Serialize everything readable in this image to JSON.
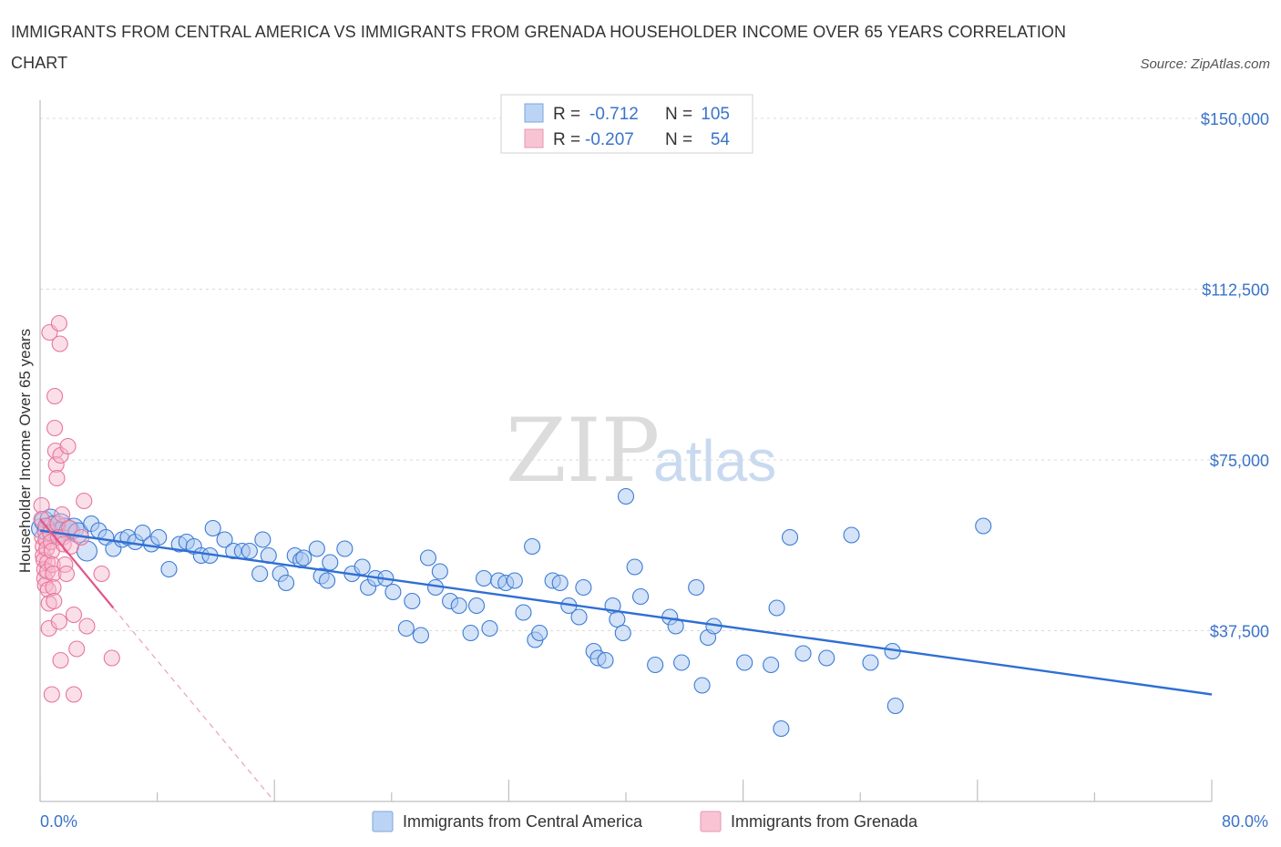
{
  "header": {
    "title": "IMMIGRANTS FROM CENTRAL AMERICA VS IMMIGRANTS FROM GRENADA HOUSEHOLDER INCOME OVER 65 YEARS CORRELATION CHART",
    "source": "Source: ZipAtlas.com"
  },
  "watermark": {
    "zip": "ZIP",
    "atlas": "atlas"
  },
  "legend": {
    "r_label": "R =",
    "n_label": "N =",
    "items": [
      {
        "r": "-0.712",
        "n": "105",
        "color": "#3a7ad6"
      },
      {
        "r": "-0.207",
        "n": "54",
        "color": "#e8749c"
      }
    ]
  },
  "chart_data": {
    "type": "scatter",
    "title": "IMMIGRANTS FROM CENTRAL AMERICA VS IMMIGRANTS FROM GRENADA HOUSEHOLDER INCOME OVER 65 YEARS CORRELATION CHART",
    "xlabel": "",
    "ylabel": "Householder Income Over 65 years",
    "xlim": [
      0,
      80
    ],
    "ylim": [
      0,
      150000
    ],
    "x_tick_labels": [
      "0.0%",
      "80.0%"
    ],
    "y_ticks": [
      37500,
      75000,
      112500,
      150000
    ],
    "y_tick_labels": [
      "$37,500",
      "$75,000",
      "$112,500",
      "$150,000"
    ],
    "grid": true,
    "legend_position": "top-center",
    "series": [
      {
        "name": "Immigrants from Central America",
        "color": "#3a7ad6",
        "points": [
          [
            0.1,
            60000
          ],
          [
            0.3,
            61500
          ],
          [
            0.5,
            59500
          ],
          [
            0.7,
            62000
          ],
          [
            0.9,
            60500
          ],
          [
            1.2,
            59000
          ],
          [
            1.4,
            61000
          ],
          [
            1.7,
            60000
          ],
          [
            2.0,
            59500
          ],
          [
            2.3,
            60000
          ],
          [
            2.6,
            59000
          ],
          [
            3.2,
            55000
          ],
          [
            3.5,
            61000
          ],
          [
            4.0,
            59500
          ],
          [
            4.5,
            58000
          ],
          [
            5.0,
            55500
          ],
          [
            5.6,
            57500
          ],
          [
            6.0,
            58000
          ],
          [
            6.5,
            57000
          ],
          [
            7.0,
            59000
          ],
          [
            7.6,
            56500
          ],
          [
            8.1,
            58000
          ],
          [
            8.8,
            51000
          ],
          [
            9.5,
            56500
          ],
          [
            10.0,
            57000
          ],
          [
            10.5,
            56000
          ],
          [
            11.0,
            54000
          ],
          [
            11.6,
            54000
          ],
          [
            11.8,
            60000
          ],
          [
            12.6,
            57500
          ],
          [
            13.2,
            55000
          ],
          [
            13.8,
            55000
          ],
          [
            14.3,
            55000
          ],
          [
            15.2,
            57500
          ],
          [
            15.6,
            54000
          ],
          [
            15.0,
            50000
          ],
          [
            16.4,
            50000
          ],
          [
            16.8,
            48000
          ],
          [
            17.4,
            54000
          ],
          [
            17.8,
            53000
          ],
          [
            18.0,
            53500
          ],
          [
            18.9,
            55500
          ],
          [
            19.2,
            49500
          ],
          [
            19.8,
            52500
          ],
          [
            19.6,
            48500
          ],
          [
            20.8,
            55500
          ],
          [
            21.3,
            50000
          ],
          [
            22.0,
            51500
          ],
          [
            22.4,
            47000
          ],
          [
            22.9,
            49000
          ],
          [
            23.6,
            49000
          ],
          [
            24.1,
            46000
          ],
          [
            25.0,
            38000
          ],
          [
            25.4,
            44000
          ],
          [
            26.0,
            36500
          ],
          [
            26.5,
            53500
          ],
          [
            27.0,
            47000
          ],
          [
            27.3,
            50500
          ],
          [
            28.0,
            44000
          ],
          [
            28.6,
            43000
          ],
          [
            29.4,
            37000
          ],
          [
            29.8,
            43000
          ],
          [
            30.3,
            49000
          ],
          [
            30.7,
            38000
          ],
          [
            31.3,
            48500
          ],
          [
            31.8,
            48000
          ],
          [
            32.4,
            48500
          ],
          [
            33.0,
            41500
          ],
          [
            33.6,
            56000
          ],
          [
            33.8,
            35500
          ],
          [
            34.1,
            37000
          ],
          [
            35.0,
            48500
          ],
          [
            35.5,
            48000
          ],
          [
            36.1,
            43000
          ],
          [
            36.8,
            40500
          ],
          [
            37.1,
            47000
          ],
          [
            37.8,
            33000
          ],
          [
            38.1,
            31500
          ],
          [
            38.6,
            31000
          ],
          [
            39.1,
            43000
          ],
          [
            39.4,
            40000
          ],
          [
            39.8,
            37000
          ],
          [
            40.0,
            67000
          ],
          [
            40.6,
            51500
          ],
          [
            41.0,
            45000
          ],
          [
            42.0,
            30000
          ],
          [
            43.0,
            40500
          ],
          [
            43.4,
            38500
          ],
          [
            43.8,
            30500
          ],
          [
            44.8,
            47000
          ],
          [
            45.2,
            25500
          ],
          [
            45.6,
            36000
          ],
          [
            46.0,
            38500
          ],
          [
            48.1,
            30500
          ],
          [
            49.9,
            30000
          ],
          [
            50.3,
            42500
          ],
          [
            50.6,
            16000
          ],
          [
            51.2,
            58000
          ],
          [
            52.1,
            32500
          ],
          [
            53.7,
            31500
          ],
          [
            55.4,
            58500
          ],
          [
            56.7,
            30500
          ],
          [
            58.2,
            33000
          ],
          [
            58.4,
            21000
          ],
          [
            64.4,
            60500
          ]
        ],
        "trend": {
          "x": [
            0,
            80
          ],
          "y": [
            59500,
            23500
          ]
        }
      },
      {
        "name": "Immigrants from Grenada",
        "color": "#e8749c",
        "points": [
          [
            0.1,
            65000
          ],
          [
            0.1,
            62000
          ],
          [
            0.15,
            58000
          ],
          [
            0.2,
            56000
          ],
          [
            0.2,
            54000
          ],
          [
            0.25,
            53000
          ],
          [
            0.3,
            51000
          ],
          [
            0.3,
            49000
          ],
          [
            0.35,
            47500
          ],
          [
            0.4,
            60500
          ],
          [
            0.4,
            57500
          ],
          [
            0.45,
            55500
          ],
          [
            0.5,
            52500
          ],
          [
            0.5,
            50500
          ],
          [
            0.55,
            46500
          ],
          [
            0.6,
            43500
          ],
          [
            0.6,
            38000
          ],
          [
            0.65,
            103000
          ],
          [
            0.7,
            59000
          ],
          [
            0.75,
            57000
          ],
          [
            0.8,
            55000
          ],
          [
            0.85,
            52000
          ],
          [
            0.9,
            50000
          ],
          [
            0.9,
            47000
          ],
          [
            0.95,
            44000
          ],
          [
            1.0,
            89000
          ],
          [
            1.0,
            82000
          ],
          [
            1.05,
            77000
          ],
          [
            1.1,
            74000
          ],
          [
            1.15,
            71000
          ],
          [
            1.2,
            61000
          ],
          [
            1.25,
            58000
          ],
          [
            1.3,
            105000
          ],
          [
            1.35,
            100500
          ],
          [
            1.4,
            76000
          ],
          [
            1.5,
            63000
          ],
          [
            1.55,
            58000
          ],
          [
            1.6,
            56500
          ],
          [
            1.7,
            52000
          ],
          [
            1.8,
            50000
          ],
          [
            1.9,
            78000
          ],
          [
            2.0,
            60000
          ],
          [
            2.1,
            56000
          ],
          [
            2.3,
            41000
          ],
          [
            2.5,
            33500
          ],
          [
            2.8,
            58000
          ],
          [
            3.0,
            66000
          ],
          [
            3.2,
            38500
          ],
          [
            4.2,
            50000
          ],
          [
            4.9,
            31500
          ],
          [
            1.3,
            39500
          ],
          [
            1.4,
            31000
          ],
          [
            0.8,
            23500
          ],
          [
            2.3,
            23500
          ]
        ],
        "trend": {
          "x": [
            0,
            5.0
          ],
          "y": [
            62000,
            42500
          ]
        },
        "trend_extension": {
          "x": [
            5.0,
            16.0
          ],
          "y": [
            42500,
            0
          ]
        }
      }
    ]
  },
  "bottom_legend": [
    {
      "label": "Immigrants from Central America",
      "color": "#3a7ad6"
    },
    {
      "label": "Immigrants from Grenada",
      "color": "#e8749c"
    }
  ]
}
